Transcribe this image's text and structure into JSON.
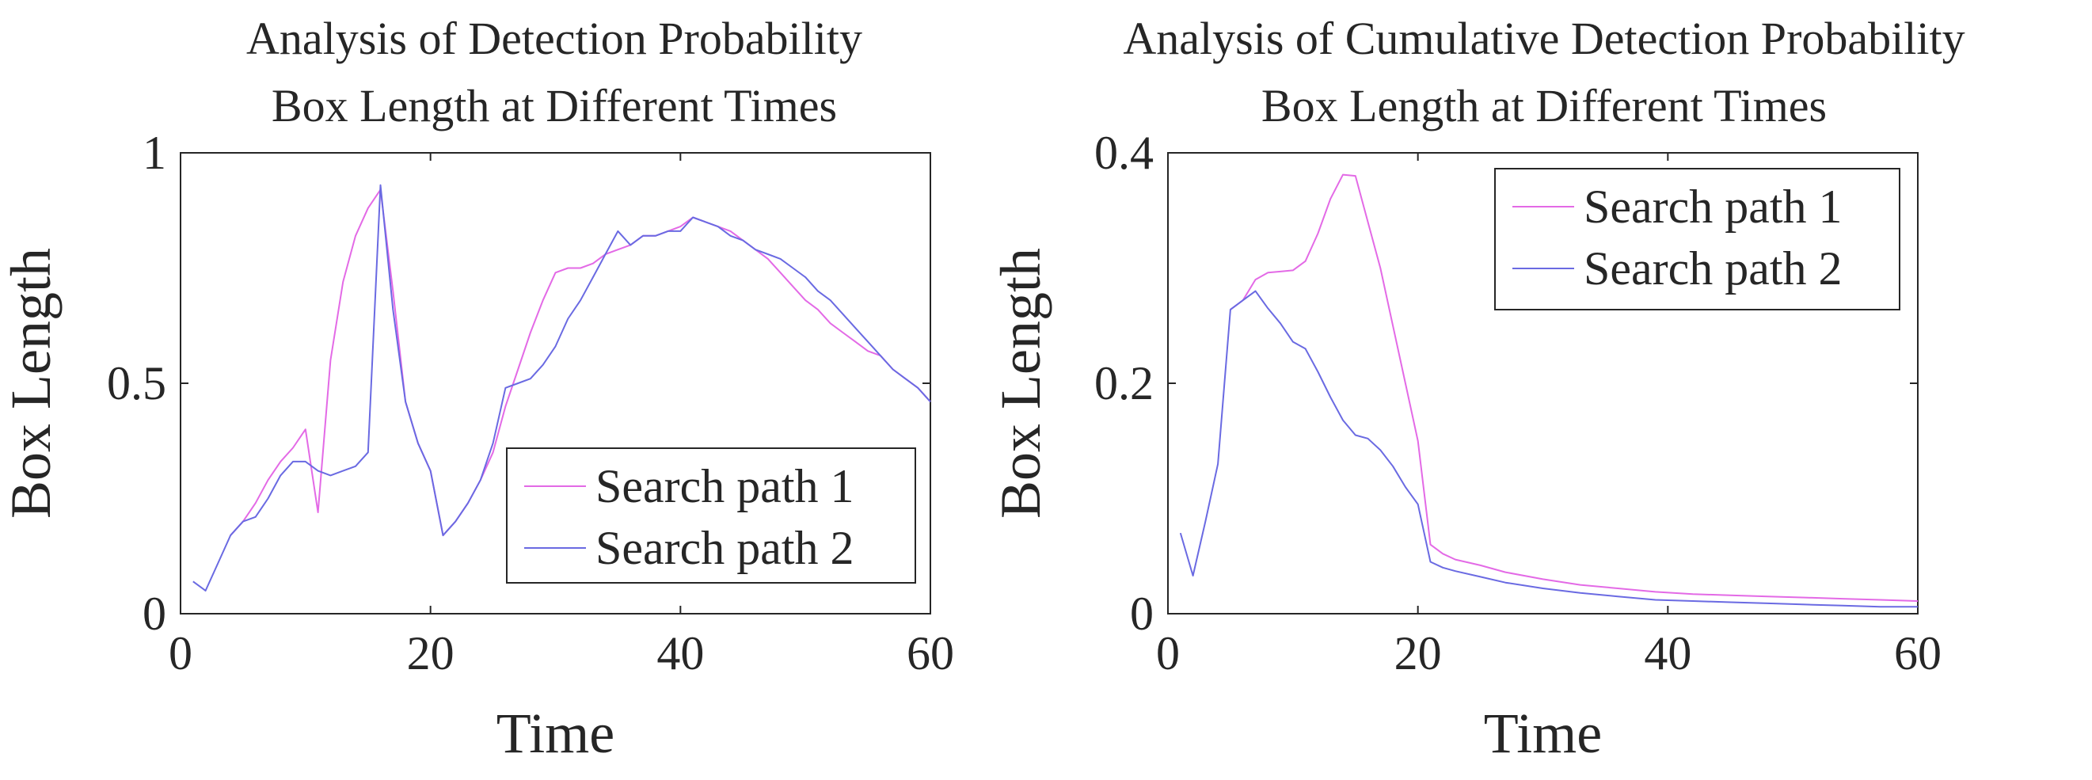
{
  "chart_data": [
    {
      "type": "line",
      "title": [
        "Analysis of Detection Probability",
        "Box Length at Different Times"
      ],
      "xlabel": "Time",
      "ylabel": "Box Length",
      "xlim": [
        0,
        60
      ],
      "ylim": [
        0,
        1
      ],
      "xticks": [
        0,
        20,
        40,
        60
      ],
      "xtick_labels": [
        "0",
        "20",
        "40",
        "60"
      ],
      "yticks": [
        0,
        0.5,
        1
      ],
      "ytick_labels": [
        "0",
        "0.5",
        "1"
      ],
      "legend_position": "lower-right",
      "grid": false,
      "series": [
        {
          "name": "Search path 1",
          "color": "#e36ae6",
          "x": [
            4,
            5,
            6,
            7,
            8,
            9,
            10,
            11,
            12,
            13,
            14,
            15,
            16,
            17,
            18,
            19,
            20,
            21,
            22,
            23,
            24,
            25,
            26,
            27,
            28,
            29,
            30,
            31,
            32,
            33,
            34,
            35,
            36,
            37,
            38,
            39,
            40,
            41,
            42,
            43,
            44,
            45,
            46,
            47,
            48,
            49,
            50,
            51,
            52,
            53,
            54,
            55,
            56,
            57,
            58,
            59,
            60
          ],
          "y": [
            0.17,
            0.2,
            0.24,
            0.29,
            0.33,
            0.36,
            0.4,
            0.22,
            0.55,
            0.72,
            0.82,
            0.88,
            0.92,
            0.7,
            0.46,
            0.37,
            0.31,
            0.17,
            0.2,
            0.24,
            0.29,
            0.35,
            0.45,
            0.53,
            0.61,
            0.68,
            0.74,
            0.75,
            0.75,
            0.76,
            0.78,
            0.79,
            0.8,
            0.82,
            0.82,
            0.83,
            0.84,
            0.86,
            0.85,
            0.84,
            0.83,
            0.81,
            0.79,
            0.77,
            0.74,
            0.71,
            0.68,
            0.66,
            0.63,
            0.61,
            0.59,
            0.57,
            0.56,
            0.53,
            0.51,
            0.49,
            0.46
          ]
        },
        {
          "name": "Search path 2",
          "color": "#6a6ae2",
          "x": [
            1,
            2,
            3,
            4,
            5,
            6,
            7,
            8,
            9,
            10,
            11,
            12,
            13,
            14,
            15,
            16,
            17,
            18,
            19,
            20,
            21,
            22,
            23,
            24,
            25,
            26,
            27,
            28,
            29,
            30,
            31,
            32,
            33,
            34,
            35,
            36,
            37,
            38,
            39,
            40,
            41,
            42,
            43,
            44,
            45,
            46,
            47,
            48,
            49,
            50,
            51,
            52,
            53,
            54,
            55,
            56,
            57,
            58,
            59,
            60
          ],
          "y": [
            0.07,
            0.05,
            0.11,
            0.17,
            0.2,
            0.21,
            0.25,
            0.3,
            0.33,
            0.33,
            0.31,
            0.3,
            0.31,
            0.32,
            0.35,
            0.93,
            0.66,
            0.46,
            0.37,
            0.31,
            0.17,
            0.2,
            0.24,
            0.29,
            0.37,
            0.49,
            0.5,
            0.51,
            0.54,
            0.58,
            0.64,
            0.68,
            0.73,
            0.78,
            0.83,
            0.8,
            0.82,
            0.82,
            0.83,
            0.83,
            0.86,
            0.85,
            0.84,
            0.82,
            0.81,
            0.79,
            0.78,
            0.77,
            0.75,
            0.73,
            0.7,
            0.68,
            0.65,
            0.62,
            0.59,
            0.56,
            0.53,
            0.51,
            0.49,
            0.46
          ]
        }
      ]
    },
    {
      "type": "line",
      "title": [
        "Analysis of Cumulative Detection Probability",
        "Box Length at Different Times"
      ],
      "xlabel": "Time",
      "ylabel": "Box Length",
      "xlim": [
        0,
        60
      ],
      "ylim": [
        0,
        0.4
      ],
      "xticks": [
        0,
        20,
        40,
        60
      ],
      "xtick_labels": [
        "0",
        "20",
        "40",
        "60"
      ],
      "yticks": [
        0,
        0.2,
        0.4
      ],
      "ytick_labels": [
        "0",
        "0.2",
        "0.4"
      ],
      "legend_position": "top-right",
      "grid": false,
      "series": [
        {
          "name": "Search path 1",
          "color": "#e36ae6",
          "x": [
            5,
            6,
            7,
            8,
            9,
            10,
            11,
            12,
            13,
            14,
            15,
            16,
            17,
            18,
            19,
            20,
            21,
            22,
            23,
            25,
            27,
            30,
            33,
            36,
            39,
            42,
            45,
            48,
            51,
            54,
            57,
            60
          ],
          "y": [
            0.264,
            0.272,
            0.29,
            0.296,
            0.297,
            0.298,
            0.306,
            0.33,
            0.36,
            0.381,
            0.38,
            0.34,
            0.3,
            0.25,
            0.2,
            0.15,
            0.06,
            0.052,
            0.047,
            0.042,
            0.036,
            0.03,
            0.025,
            0.022,
            0.019,
            0.017,
            0.016,
            0.015,
            0.014,
            0.013,
            0.012,
            0.011
          ]
        },
        {
          "name": "Search path 2",
          "color": "#6a6ae2",
          "x": [
            1,
            2,
            3,
            4,
            5,
            6,
            7,
            8,
            9,
            10,
            11,
            12,
            13,
            14,
            15,
            16,
            17,
            18,
            19,
            20,
            21,
            22,
            23,
            25,
            27,
            30,
            33,
            36,
            39,
            42,
            45,
            48,
            51,
            54,
            57,
            60
          ],
          "y": [
            0.07,
            0.033,
            0.08,
            0.13,
            0.264,
            0.272,
            0.28,
            0.265,
            0.252,
            0.236,
            0.23,
            0.21,
            0.188,
            0.168,
            0.155,
            0.152,
            0.142,
            0.128,
            0.11,
            0.095,
            0.045,
            0.04,
            0.037,
            0.032,
            0.027,
            0.022,
            0.018,
            0.015,
            0.012,
            0.011,
            0.01,
            0.009,
            0.008,
            0.007,
            0.006,
            0.006
          ]
        }
      ]
    }
  ]
}
